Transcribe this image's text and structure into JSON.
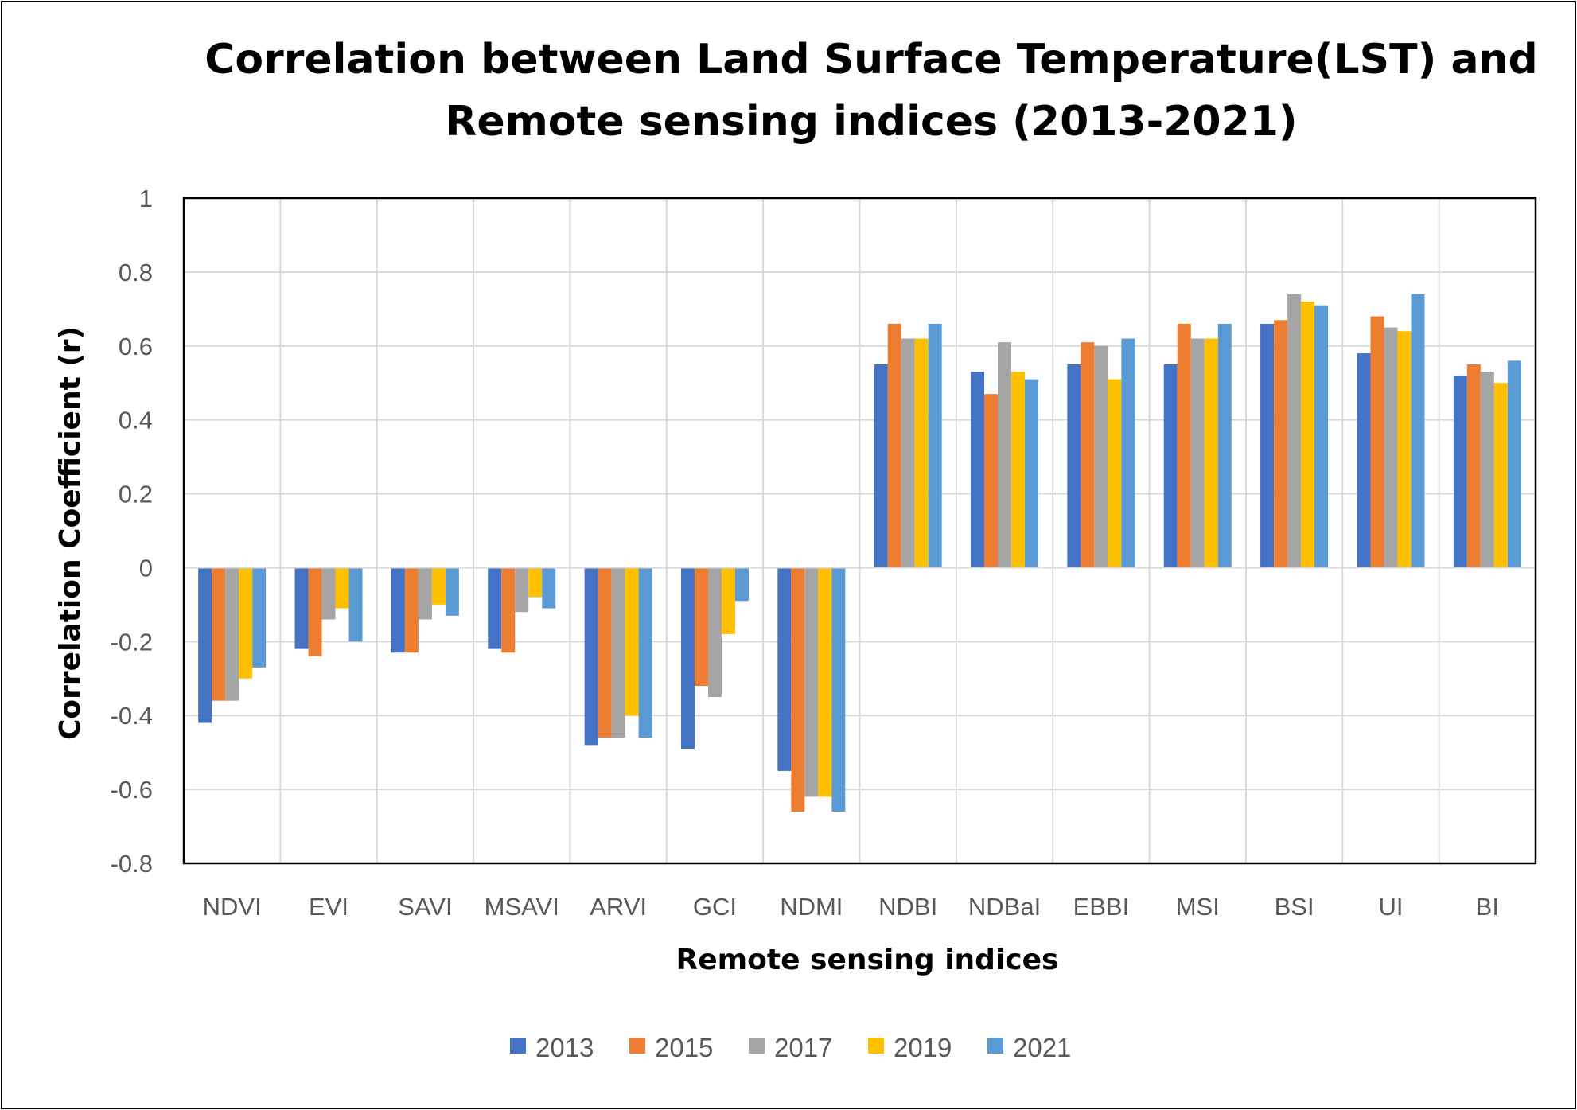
{
  "chart_data": {
    "type": "bar",
    "title_lines": [
      "Correlation between Land Surface Temperature(LST) and",
      "Remote sensing indices (2013-2021)"
    ],
    "xlabel": "Remote sensing indices",
    "ylabel": "Correlation Coefficient (r)",
    "ylim": [
      -0.8,
      1
    ],
    "yticks": [
      1,
      0.8,
      0.6,
      0.4,
      0.2,
      0,
      -0.2,
      -0.4,
      -0.6,
      -0.8
    ],
    "ytick_labels": [
      "1",
      "0.8",
      "0.6",
      "0.4",
      "0.2",
      "0",
      "-0.2",
      "-0.4",
      "-0.6",
      "-0.8"
    ],
    "grid": true,
    "legend_position": "bottom",
    "categories": [
      "NDVI",
      "EVI",
      "SAVI",
      "MSAVI",
      "ARVI",
      "GCI",
      "NDMI",
      "NDBI",
      "NDBaI",
      "EBBI",
      "MSI",
      "BSI",
      "UI",
      "BI"
    ],
    "series": [
      {
        "name": "2013",
        "color": "#4472C4",
        "values": [
          -0.42,
          -0.22,
          -0.23,
          -0.22,
          -0.48,
          -0.49,
          -0.55,
          0.55,
          0.53,
          0.55,
          0.55,
          0.66,
          0.58,
          0.52
        ]
      },
      {
        "name": "2015",
        "color": "#ED7D31",
        "values": [
          -0.36,
          -0.24,
          -0.23,
          -0.23,
          -0.46,
          -0.32,
          -0.66,
          0.66,
          0.47,
          0.61,
          0.66,
          0.67,
          0.68,
          0.55
        ]
      },
      {
        "name": "2017",
        "color": "#A5A5A5",
        "values": [
          -0.36,
          -0.14,
          -0.14,
          -0.12,
          -0.46,
          -0.35,
          -0.62,
          0.62,
          0.61,
          0.6,
          0.62,
          0.74,
          0.65,
          0.53
        ]
      },
      {
        "name": "2019",
        "color": "#FFC000",
        "values": [
          -0.3,
          -0.11,
          -0.1,
          -0.08,
          -0.4,
          -0.18,
          -0.62,
          0.62,
          0.53,
          0.51,
          0.62,
          0.72,
          0.64,
          0.5
        ]
      },
      {
        "name": "2021",
        "color": "#5B9BD5",
        "values": [
          -0.27,
          -0.2,
          -0.13,
          -0.11,
          -0.46,
          -0.09,
          -0.66,
          0.66,
          0.51,
          0.62,
          0.66,
          0.71,
          0.74,
          0.56
        ]
      }
    ]
  }
}
